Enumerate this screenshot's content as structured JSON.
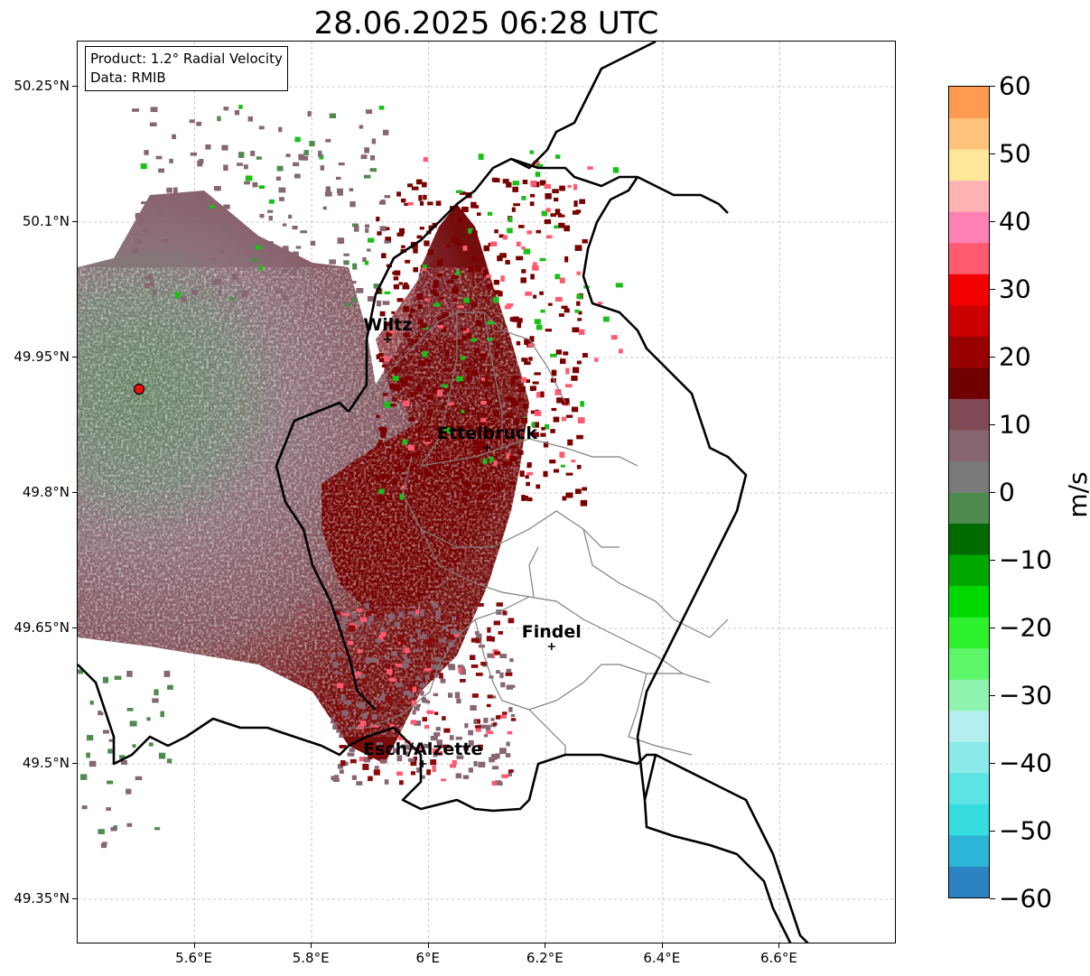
{
  "title": "28.06.2025 06:28 UTC",
  "info": {
    "product": "Product: 1.2° Radial Velocity",
    "data_source": "Data: RMIB"
  },
  "axes": {
    "lon_labels": [
      "5.6°E",
      "5.8°E",
      "6°E",
      "6.2°E",
      "6.4°E",
      "6.6°E"
    ],
    "lat_labels": [
      "50.25°N",
      "50.1°N",
      "49.95°N",
      "49.8°N",
      "49.65°N",
      "49.5°N",
      "49.35°N"
    ],
    "lon_values": [
      5.6,
      5.8,
      6.0,
      6.2,
      6.4,
      6.6
    ],
    "lat_values": [
      50.25,
      50.1,
      49.95,
      49.8,
      49.65,
      49.5,
      49.35
    ],
    "lon_range": [
      5.4,
      6.8
    ],
    "lat_range": [
      49.3,
      50.3
    ],
    "grid": true
  },
  "cities": [
    {
      "name": "Wiltz",
      "lon": 5.93,
      "lat": 49.97
    },
    {
      "name": "Ettelbruck",
      "lon": 6.1,
      "lat": 49.85
    },
    {
      "name": "Findel",
      "lon": 6.21,
      "lat": 49.63
    },
    {
      "name": "Esch/Alzette",
      "lon": 5.99,
      "lat": 49.5
    }
  ],
  "radar_site": {
    "lon": 5.505,
    "lat": 49.915
  },
  "colorbar": {
    "unit": "m/s",
    "ticks": [
      "60",
      "50",
      "40",
      "30",
      "20",
      "10",
      "0",
      "−10",
      "−20",
      "−30",
      "−40",
      "−50",
      "−60"
    ],
    "min": -60,
    "max": 60,
    "colors": [
      "#2b83c1",
      "#2cb5d6",
      "#35dde0",
      "#5ce3e3",
      "#8ae9e9",
      "#b5eeee",
      "#8ff2ae",
      "#5df76a",
      "#2cf12c",
      "#00d800",
      "#00a800",
      "#006b00",
      "#4f8a4f",
      "#7a7a7a",
      "#866673",
      "#7f4a55",
      "#700000",
      "#990000",
      "#cc0000",
      "#f20000",
      "#ff5a70",
      "#ff80b3",
      "#ffb3b3",
      "#ffe799",
      "#ffc27a",
      "#ff9a50"
    ]
  }
}
